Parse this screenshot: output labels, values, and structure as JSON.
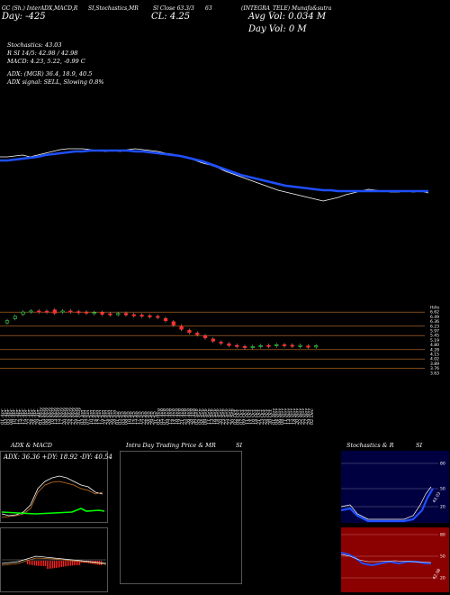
{
  "header": {
    "line1_left": "GC (Sh.) InterADX,MACD,R",
    "line1_mid1": "SI,Stochastics,MR",
    "line1_mid2": "Sl Close 63.3/3",
    "line1_mid3": "63",
    "line1_right": "(INTEGRA_TELE) Munafa&sutra",
    "line2_left": "Day: -425",
    "line2_cl": "CL: 4.25",
    "line2_vol": "Avg Vol: 0.034  M",
    "line3_dayvol": "Day Vol: 0   M"
  },
  "indicators": {
    "stochastics": "Stochastics: 43.03",
    "rsi": "R                    SI 14/5: 42.98 / 42.98",
    "macd": "MACD: 4.23, 5.22, -0.99 C",
    "adx": "ADX:                         (MGR) 36.4, 18.9, 40.5",
    "adx_signal": "ADX  signal: SELL, Slowing 0.8%"
  },
  "chart_data": [
    {
      "type": "line",
      "name": "price-with-moving-averages",
      "x_index_range": [
        0,
        92
      ],
      "series": [
        {
          "color": "#ffffff",
          "values": [
            174,
            174,
            173,
            172,
            174,
            172,
            170,
            168,
            166,
            165,
            165,
            165,
            166,
            167,
            168,
            167,
            168,
            166,
            165,
            166,
            167,
            168,
            170,
            171,
            173,
            175,
            178,
            181,
            183,
            186,
            190,
            193,
            196,
            199,
            202,
            205,
            208,
            211,
            213,
            215,
            217,
            219,
            221,
            223,
            221,
            219,
            216,
            214,
            212,
            210,
            211,
            212,
            213,
            213,
            212,
            213,
            212,
            214
          ]
        },
        {
          "color": "#1f4fff",
          "values": [
            178,
            178,
            177,
            176,
            175,
            174,
            172,
            171,
            170,
            169,
            168,
            168,
            167,
            167,
            167,
            167,
            167,
            167,
            168,
            168,
            169,
            170,
            171,
            172,
            173,
            175,
            177,
            179,
            182,
            185,
            188,
            191,
            194,
            196,
            198,
            200,
            202,
            204,
            206,
            207,
            208,
            209,
            210,
            211,
            211,
            212,
            212,
            212,
            212,
            212,
            212,
            212,
            212,
            212,
            212,
            212,
            212,
            212
          ]
        }
      ]
    },
    {
      "type": "candlestick",
      "name": "price-candles",
      "price_ticks": [
        "Hi/lo",
        "6.62",
        "6.49",
        "6.36",
        "6.23",
        "5.97",
        "5.45",
        "5.19",
        "4.80",
        "4.28",
        "4.15",
        "4.02",
        "3.89",
        "3.76",
        "3.63"
      ],
      "candles": [
        {
          "x": 0,
          "open": 5.9,
          "close": 6.0,
          "up": true
        },
        {
          "x": 1,
          "open": 6.1,
          "close": 6.2,
          "up": true
        },
        {
          "x": 2,
          "open": 6.3,
          "close": 6.4,
          "up": true
        },
        {
          "x": 3,
          "open": 6.42,
          "close": 6.45,
          "up": true
        },
        {
          "x": 4,
          "open": 6.45,
          "close": 6.43,
          "up": false
        },
        {
          "x": 5,
          "open": 6.44,
          "close": 6.42,
          "up": false
        },
        {
          "x": 6,
          "open": 6.5,
          "close": 6.35,
          "up": false
        },
        {
          "x": 7,
          "open": 6.42,
          "close": 6.45,
          "up": true
        },
        {
          "x": 8,
          "open": 6.45,
          "close": 6.42,
          "up": false
        },
        {
          "x": 9,
          "open": 6.42,
          "close": 6.38,
          "up": false
        },
        {
          "x": 10,
          "open": 6.4,
          "close": 6.35,
          "up": false
        },
        {
          "x": 11,
          "open": 6.36,
          "close": 6.38,
          "up": true
        },
        {
          "x": 12,
          "open": 6.38,
          "close": 6.3,
          "up": false
        },
        {
          "x": 13,
          "open": 6.32,
          "close": 6.3,
          "up": false
        },
        {
          "x": 14,
          "open": 6.3,
          "close": 6.33,
          "up": true
        },
        {
          "x": 15,
          "open": 6.34,
          "close": 6.27,
          "up": false
        },
        {
          "x": 16,
          "open": 6.28,
          "close": 6.26,
          "up": false
        },
        {
          "x": 17,
          "open": 6.26,
          "close": 6.23,
          "up": false
        },
        {
          "x": 18,
          "open": 6.23,
          "close": 6.2,
          "up": false
        },
        {
          "x": 19,
          "open": 6.2,
          "close": 6.18,
          "up": false
        },
        {
          "x": 20,
          "open": 6.1,
          "close": 6.0,
          "up": false
        },
        {
          "x": 21,
          "open": 5.95,
          "close": 5.8,
          "up": false
        },
        {
          "x": 22,
          "open": 5.75,
          "close": 5.6,
          "up": false
        },
        {
          "x": 23,
          "open": 5.55,
          "close": 5.45,
          "up": false
        },
        {
          "x": 24,
          "open": 5.42,
          "close": 5.35,
          "up": false
        },
        {
          "x": 25,
          "open": 5.3,
          "close": 5.2,
          "up": false
        },
        {
          "x": 26,
          "open": 5.15,
          "close": 5.05,
          "up": false
        },
        {
          "x": 27,
          "open": 5.0,
          "close": 4.95,
          "up": false
        },
        {
          "x": 28,
          "open": 4.92,
          "close": 4.85,
          "up": false
        },
        {
          "x": 29,
          "open": 4.85,
          "close": 4.8,
          "up": false
        },
        {
          "x": 30,
          "open": 4.8,
          "close": 4.78,
          "up": false
        },
        {
          "x": 31,
          "open": 4.78,
          "close": 4.8,
          "up": true
        },
        {
          "x": 32,
          "open": 4.8,
          "close": 4.84,
          "up": true
        },
        {
          "x": 33,
          "open": 4.85,
          "close": 4.82,
          "up": false
        },
        {
          "x": 34,
          "open": 4.84,
          "close": 4.88,
          "up": true
        },
        {
          "x": 35,
          "open": 4.88,
          "close": 4.85,
          "up": false
        },
        {
          "x": 36,
          "open": 4.86,
          "close": 4.84,
          "up": false
        },
        {
          "x": 37,
          "open": 4.83,
          "close": 4.85,
          "up": true
        },
        {
          "x": 38,
          "open": 4.82,
          "close": 4.8,
          "up": false
        },
        {
          "x": 39,
          "open": 4.81,
          "close": 4.83,
          "up": true
        }
      ]
    },
    {
      "type": "line",
      "name": "adx-macd-panel",
      "title": "ADX  & MACD",
      "readout": "ADX: 36.36  +DY: 18.92  -DY: 40.54"
    },
    {
      "type": "line",
      "name": "intraday-panel",
      "title_left": "Intra  Day Trading Price  & MR",
      "title_right": "SI"
    },
    {
      "type": "line",
      "name": "stochastics-rsi-panel",
      "title_left": "Stochastics & R",
      "title_right": "SI",
      "top_ticks": [
        "80",
        "50",
        "20"
      ],
      "bottom_ticks": [
        "80",
        "50",
        "20"
      ],
      "stoch_label": "43.03",
      "rsi_label": "42.98"
    }
  ],
  "date_labels": [
    "01 Apr",
    "03 Apr",
    "05 Apr",
    "08 Apr",
    "10 Apr",
    "12 Apr",
    "15 Apr",
    "17 Apr",
    "19 Apr",
    "22 Apr",
    "24 Apr",
    "26 Apr",
    "29 Apr",
    "01 May",
    "03 May",
    "06 May",
    "08 May",
    "10 May",
    "13 May",
    "15 May",
    "17 May",
    "20 May",
    "22 May",
    "24 May",
    "27 May",
    "29 May",
    "31 May",
    "03 Jun",
    "05 Jun",
    "07 Jun",
    "10 Jun",
    "12 Jun",
    "14 Jun",
    "17 Jun",
    "19 Jun",
    "21 Jun",
    "24 Jun",
    "26 Jun",
    "28 Jun",
    "01 Jul",
    "03 Jul",
    "05 Jul",
    "08 Jul",
    "10 Jul",
    "12 Jul",
    "15 Jul",
    "17 Jul",
    "19 Jul",
    "22 Jul",
    "24 Jul",
    "26 Jul",
    "29 Jul",
    "31 Jul",
    "02 Aug",
    "05 Aug",
    "07 Aug",
    "09 Aug",
    "12 Aug",
    "14 Aug",
    "16 Aug",
    "19 Aug",
    "21 Aug",
    "23 Aug",
    "26 Aug",
    "28 Aug",
    "30 Aug",
    "02 Sep",
    "04 Sep",
    "06 Sep",
    "09 Sep",
    "11 Sep",
    "13 Sep",
    "16 Sep",
    "18 Sep",
    "20 Sep",
    "23 Sep",
    "25 Sep",
    "27 Sep",
    "30 Sep",
    "02 Oct",
    "04 Oct",
    "07 Oct",
    "09 Oct",
    "11 Oct",
    "14 Oct",
    "16 Oct",
    "18 Oct",
    "21 Oct",
    "23 Oct",
    "25 Oct",
    "28 Oct",
    "30 Oct",
    "01 Nov",
    "04 Nov",
    "06 Nov",
    "08 Nov",
    "11 Nov",
    "13 Nov",
    "15 Nov",
    "18 Nov",
    "20 Nov",
    "22 Nov",
    "25 Nov",
    "27 Nov",
    "29 Nov",
    "02 Dec"
  ],
  "colors": {
    "background": "#000000",
    "ma_blue": "#1f4fff",
    "price_line": "#ffffff",
    "grid_orange": "#c8742a",
    "candle_up": "#2ecc40",
    "candle_down": "#ff3030",
    "macd_red": "#ff2020",
    "adx_green": "#00ff00",
    "rsi_panel": "#8b0000",
    "stoch_panel_bg": "#000040"
  }
}
